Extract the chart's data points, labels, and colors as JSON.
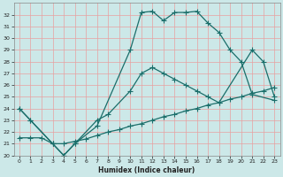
{
  "xlabel": "Humidex (Indice chaleur)",
  "background_color": "#cce8e8",
  "grid_color": "#e8a0a0",
  "line_color": "#1a6e6a",
  "xlim": [
    -0.5,
    23.5
  ],
  "ylim": [
    20,
    33
  ],
  "xticks": [
    0,
    1,
    2,
    3,
    4,
    5,
    6,
    7,
    8,
    9,
    10,
    11,
    12,
    13,
    14,
    15,
    16,
    17,
    18,
    19,
    20,
    21,
    22,
    23
  ],
  "yticks": [
    20,
    21,
    22,
    23,
    24,
    25,
    26,
    27,
    28,
    29,
    30,
    31,
    32
  ],
  "line1_x": [
    0,
    1,
    3,
    4,
    5,
    7,
    10,
    11,
    12,
    13,
    14,
    15,
    16,
    17,
    18,
    19,
    20,
    21,
    23
  ],
  "line1_y": [
    24,
    23,
    21,
    20,
    21,
    22.5,
    29,
    32.2,
    32.3,
    31.5,
    32.2,
    32.2,
    32.3,
    31.3,
    30.5,
    29,
    28,
    25.2,
    24.7
  ],
  "line2_x": [
    0,
    1,
    3,
    4,
    5,
    7,
    8,
    10,
    11,
    12,
    13,
    14,
    15,
    16,
    17,
    18,
    21,
    22,
    23
  ],
  "line2_y": [
    24,
    23,
    21,
    20,
    21,
    23,
    23.5,
    25.5,
    27,
    27.5,
    27,
    26.5,
    26,
    25.5,
    25,
    24.5,
    29,
    28,
    25
  ],
  "line3_x": [
    0,
    1,
    2,
    3,
    4,
    5,
    6,
    7,
    8,
    9,
    10,
    11,
    12,
    13,
    14,
    15,
    16,
    17,
    18,
    19,
    20,
    21,
    22,
    23
  ],
  "line3_y": [
    21.5,
    21.5,
    21.5,
    21.0,
    21.0,
    21.2,
    21.4,
    21.7,
    22.0,
    22.2,
    22.5,
    22.7,
    23.0,
    23.3,
    23.5,
    23.8,
    24.0,
    24.3,
    24.5,
    24.8,
    25.0,
    25.3,
    25.5,
    25.8
  ]
}
